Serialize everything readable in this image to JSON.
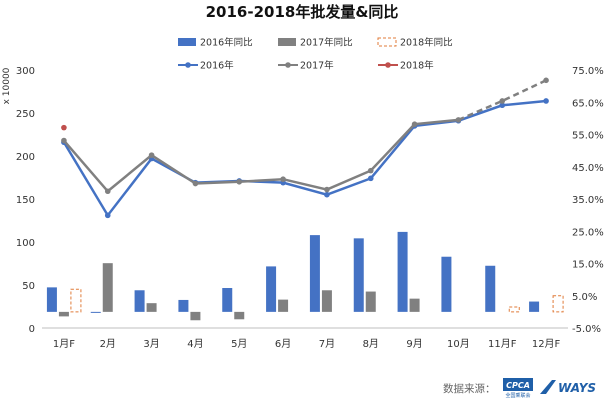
{
  "chart_data": {
    "type": "bar",
    "title": "2016-2018年批发量&同比",
    "categories": [
      "1月F",
      "2月",
      "3月",
      "4月",
      "5月",
      "6月",
      "7月",
      "8月",
      "9月",
      "10月",
      "11月F",
      "12月F"
    ],
    "left_axis": {
      "unit_label": "x 10000",
      "ylim": [
        0,
        300
      ],
      "ticks": [
        "0",
        "50",
        "100",
        "150",
        "200",
        "250",
        "300"
      ]
    },
    "right_axis": {
      "ylim": [
        -5,
        75
      ],
      "ticks": [
        "-5.0%",
        "5.0%",
        "15.0%",
        "25.0%",
        "35.0%",
        "45.0%",
        "55.0%",
        "65.0%",
        "75.0%"
      ]
    },
    "bar_series": [
      {
        "name": "2016年同比",
        "axis": "right",
        "color": "#4472c4",
        "style": "solid",
        "values": [
          7.6,
          -0.2,
          6.7,
          3.7,
          7.4,
          14.1,
          23.8,
          22.8,
          24.8,
          17.1,
          14.3,
          3.2
        ]
      },
      {
        "name": "2017年同比",
        "axis": "right",
        "color": "#808080",
        "style": "solid",
        "values": [
          -1.4,
          15.1,
          2.7,
          -2.6,
          -2.3,
          3.8,
          6.7,
          6.3,
          4.1,
          0,
          0,
          0
        ]
      },
      {
        "name": "2018年同比",
        "axis": "right",
        "color": "#e07b39",
        "style": "dashed-outline",
        "values": [
          7.0,
          null,
          null,
          null,
          null,
          null,
          null,
          null,
          null,
          null,
          1.5,
          5.0
        ]
      }
    ],
    "line_series": [
      {
        "name": "2016年",
        "axis": "left",
        "color": "#4472c4",
        "style": "solid",
        "values": [
          216,
          131,
          197,
          169,
          171,
          169,
          155,
          174,
          235,
          241,
          259,
          264
        ]
      },
      {
        "name": "2017年",
        "axis": "left",
        "color": "#808080",
        "style": "solid-then-dashed",
        "dashed_from_index": 9,
        "values": [
          218,
          159,
          201,
          168,
          170,
          173,
          161,
          183,
          237,
          242,
          264,
          288
        ]
      },
      {
        "name": "2018年",
        "axis": "left",
        "color": "#c0504d",
        "style": "marker",
        "values": [
          233,
          null,
          null,
          null,
          null,
          null,
          null,
          null,
          null,
          null,
          null,
          null
        ]
      }
    ],
    "legend": {
      "placement": "top",
      "rows": [
        [
          {
            "label": "2016年同比",
            "kind": "bar",
            "color": "#4472c4"
          },
          {
            "label": "2017年同比",
            "kind": "bar",
            "color": "#808080"
          },
          {
            "label": "2018年同比",
            "kind": "bar-dashed",
            "color": "#e07b39"
          }
        ],
        [
          {
            "label": "2016年",
            "kind": "line",
            "color": "#4472c4"
          },
          {
            "label": "2017年",
            "kind": "line",
            "color": "#808080"
          },
          {
            "label": "2018年",
            "kind": "line",
            "color": "#c0504d"
          }
        ]
      ]
    },
    "grid": false
  },
  "footer": {
    "source_label": "数据来源：",
    "logo_cpca": "CPCA",
    "logo_cpca_sub": "全国乘联会",
    "logo_ways": "WAYS"
  }
}
